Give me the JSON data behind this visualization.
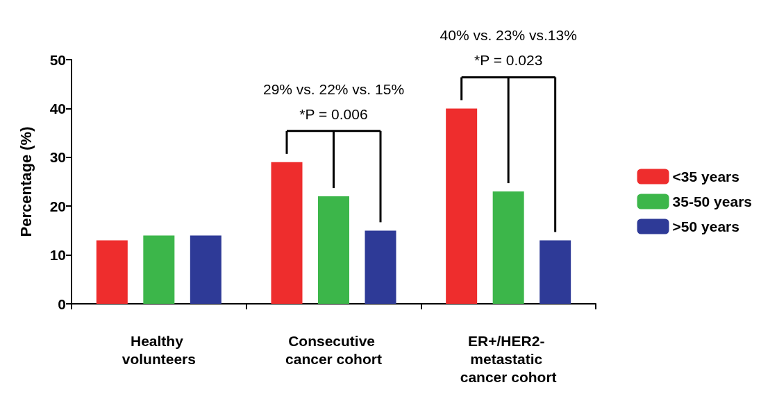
{
  "chart_data": {
    "type": "bar",
    "ylabel": "Percentage (%)",
    "categories": [
      "Healthy volunteers",
      "Consecutive cancer cohort",
      "ER+/HER2- metastatic cancer cohort"
    ],
    "series": [
      {
        "name": "<35 years",
        "color": "#ee2d2d",
        "values": [
          13,
          29,
          40
        ]
      },
      {
        "name": "35-50 years",
        "color": "#3cb64a",
        "values": [
          14,
          22,
          23
        ]
      },
      {
        "name": ">50 years",
        "color": "#2e3a97",
        "values": [
          14,
          15,
          13
        ]
      }
    ],
    "ylim": [
      0,
      50
    ],
    "yticks": [
      0,
      10,
      20,
      30,
      40,
      50
    ],
    "grid": false,
    "legend": "right",
    "annotations": [
      "29% vs. 22% vs. 15%",
      "*P = 0.006",
      "40% vs. 23% vs.13%",
      "*P = 0.023"
    ]
  }
}
